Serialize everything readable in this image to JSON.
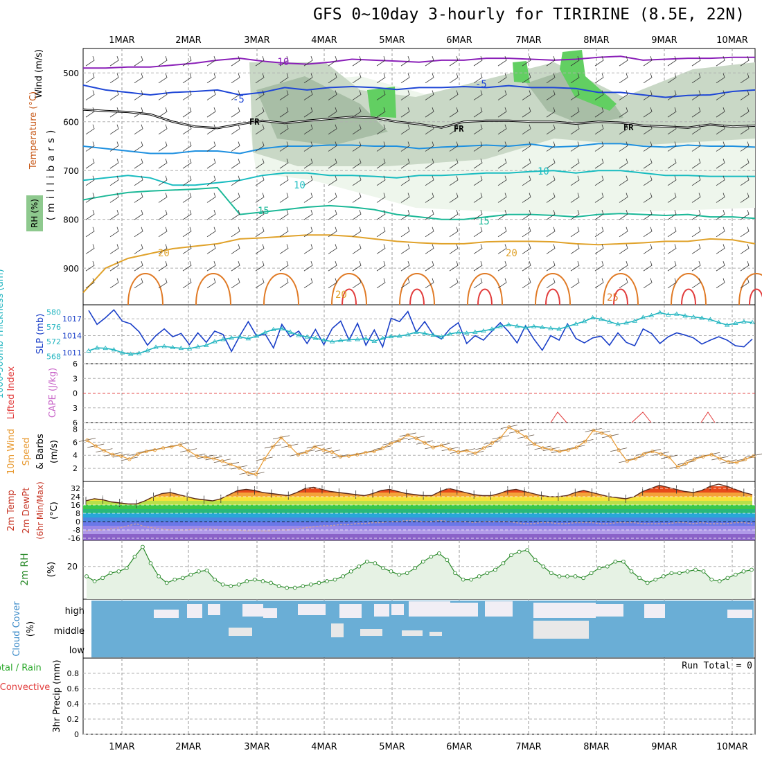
{
  "title": "GFS 0~10day 3-hourly for TIRIRINE (8.5E, 22N)",
  "date_labels": [
    "1MAR",
    "2MAR",
    "3MAR",
    "4MAR",
    "5MAR",
    "6MAR",
    "7MAR",
    "8MAR",
    "9MAR",
    "10MAR"
  ],
  "run_total": "Run Total = 0",
  "panel_labels": {
    "upper": {
      "wind": "Wind (m/s)",
      "temperature": "Temperature (°C)",
      "pressure": "(millibars)",
      "rh": "RH (%)"
    },
    "slp": {
      "thickness": "1000-500mb Thickness (dm)",
      "slp": "SLP (mb)"
    },
    "li": {
      "li": "Lifted Index",
      "cape": "CAPE (J/kg)"
    },
    "wind10": {
      "line1": "10m Wind",
      "line2": "Speed",
      "line3": "& Barbs",
      "units": "(m/s)"
    },
    "temp2m": {
      "line1": "2m Temp",
      "line2": "2m DewPt",
      "line3": "(6hr Min/Max)",
      "units": "(°C)"
    },
    "rh2m": {
      "label": "2m RH",
      "units": "(%)"
    },
    "cloud": {
      "label": "Cloud Cover",
      "units": "(%)",
      "high": "high",
      "middle": "middle",
      "low": "low"
    },
    "precip": {
      "total": "Total / Rain",
      "conv": "Convective",
      "label": "3hr Precip (mm)"
    }
  },
  "colors": {
    "slp": "#1a3fc8",
    "thickness": "#22b5c0",
    "wind10": "#e89a32",
    "rh2m": "#2a8a2a",
    "cloud": "#6aaed6",
    "cloud_clear": "#f1eef5",
    "li": "#e23c3c",
    "fr": "#000000"
  },
  "chart_data": [
    {
      "type": "line",
      "name": "upper_air_cross_section",
      "ylabel": "(millibars)",
      "y_ticks": [
        500,
        600,
        700,
        800,
        900
      ],
      "ylim": [
        975,
        450
      ],
      "contours": [
        {
          "label": "-10",
          "color": "#8a1fb8",
          "p": [
            490,
            490,
            488,
            488,
            484,
            480,
            474,
            470,
            476,
            480,
            482,
            478,
            472,
            474,
            476,
            478,
            474,
            474,
            470,
            470,
            472,
            474,
            472,
            468,
            466,
            474,
            472,
            470,
            470,
            468,
            468
          ]
        },
        {
          "label": "-5",
          "color": "#1e46d6",
          "p": [
            525,
            535,
            540,
            545,
            540,
            538,
            535,
            545,
            540,
            530,
            535,
            530,
            528,
            530,
            534,
            530,
            530,
            528,
            530,
            526,
            530,
            530,
            532,
            540,
            540,
            545,
            550,
            546,
            545,
            538,
            535
          ]
        },
        {
          "label": "FR",
          "color": "#000000",
          "p": [
            575,
            578,
            580,
            585,
            600,
            610,
            613,
            605,
            598,
            603,
            598,
            594,
            590,
            592,
            600,
            605,
            612,
            600,
            598,
            598,
            600,
            600,
            604,
            600,
            602,
            608,
            610,
            612,
            606,
            610,
            608
          ]
        },
        {
          "label": "-5",
          "color": "#1e90e0",
          "p": [
            650,
            655,
            660,
            665,
            665,
            660,
            660,
            665,
            655,
            650,
            650,
            648,
            648,
            650,
            650,
            655,
            652,
            650,
            648,
            650,
            646,
            652,
            650,
            645,
            645,
            650,
            652,
            648,
            650,
            650,
            652
          ]
        },
        {
          "label": "10",
          "color": "#18bcc0",
          "p": [
            720,
            715,
            710,
            715,
            730,
            730,
            725,
            720,
            710,
            705,
            705,
            710,
            710,
            712,
            715,
            710,
            710,
            708,
            705,
            705,
            702,
            700,
            705,
            700,
            700,
            705,
            710,
            710,
            712,
            712,
            712
          ]
        },
        {
          "label": "15",
          "color": "#1bb897",
          "p": [
            760,
            752,
            745,
            742,
            740,
            738,
            735,
            790,
            785,
            780,
            775,
            772,
            775,
            780,
            790,
            795,
            800,
            800,
            795,
            790,
            790,
            792,
            795,
            790,
            788,
            790,
            792,
            790,
            795,
            795,
            798
          ]
        },
        {
          "label": "20",
          "color": "#e0a22a",
          "p": [
            950,
            900,
            880,
            870,
            860,
            855,
            850,
            840,
            838,
            835,
            832,
            832,
            835,
            840,
            845,
            848,
            850,
            850,
            846,
            845,
            845,
            846,
            850,
            852,
            850,
            848,
            845,
            845,
            840,
            842,
            850
          ]
        }
      ],
      "fr_labels": [
        "FR",
        "FR",
        "FR"
      ],
      "temp_labels": [
        "-10",
        "-5",
        "10",
        "15",
        "-5",
        "20",
        "10",
        "15",
        "20",
        "20",
        "25"
      ]
    },
    {
      "type": "line",
      "name": "slp_thickness",
      "slp_ticks": [
        1011,
        1014,
        1017
      ],
      "thickness_ticks": [
        568,
        572,
        576,
        580
      ],
      "series": [
        {
          "name": "SLP (mb)",
          "color": "#1a3fc8",
          "values": [
            1018.5,
            1016,
            1017.2,
            1018.6,
            1016.6,
            1016.1,
            1014.7,
            1012.3,
            1014,
            1015.2,
            1013.8,
            1014.4,
            1012.4,
            1014.5,
            1012.8,
            1014.8,
            1014.2,
            1011.2,
            1014,
            1016.5,
            1013.9,
            1014.3,
            1011.8,
            1016,
            1013.8,
            1014.8,
            1012.6,
            1015.1,
            1012.4,
            1015.3,
            1016.6,
            1013.2,
            1016.2,
            1012.3,
            1015,
            1012,
            1017.1,
            1016.5,
            1018.3,
            1014.6,
            1016.5,
            1014.2,
            1013.4,
            1015.2,
            1016.3,
            1012.6,
            1014,
            1013.2,
            1014.8,
            1016.3,
            1014.7,
            1012.7,
            1015.8,
            1013.4,
            1011.4,
            1014,
            1013.2,
            1016.1,
            1013.5,
            1012.7,
            1013.6,
            1013.9,
            1012.3,
            1014.5,
            1012.8,
            1012.2,
            1015.2,
            1014.4,
            1012.6,
            1013.8,
            1014.5,
            1014.1,
            1013.6,
            1012.5,
            1013.2,
            1013.8,
            1013.2,
            1012.2,
            1012,
            1013.4
          ]
        },
        {
          "name": "1000-500mb Thickness (dm)",
          "color": "#22b5c0",
          "values": [
            569.5,
            570.3,
            570.2,
            569.8,
            569,
            568.6,
            568.8,
            569.6,
            570.5,
            570.7,
            570.4,
            570.2,
            570.1,
            570.6,
            571,
            572,
            572.6,
            573,
            573.3,
            572.8,
            573.5,
            574.5,
            575.3,
            575.5,
            574.6,
            573.7,
            573.3,
            572.9,
            572.4,
            572,
            572.3,
            572.5,
            572.6,
            572.8,
            572.1,
            572.9,
            573.4,
            573.5,
            573.9,
            574.6,
            574.2,
            573.8,
            573.3,
            574.1,
            574.5,
            574.3,
            574.6,
            574.9,
            575.4,
            576.1,
            576.6,
            576.2,
            575.8,
            576.1,
            575.9,
            575.6,
            575.4,
            576.1,
            576.8,
            577.5,
            578.5,
            578.1,
            577.4,
            576.7,
            577.1,
            577.6,
            578.6,
            579.1,
            579.9,
            579.3,
            579.5,
            579,
            578.7,
            578.4,
            578,
            577.2,
            576.5,
            577,
            577.4,
            577.2
          ]
        }
      ]
    },
    {
      "type": "line",
      "name": "lifted_index_cape",
      "li_ticks": [
        -6,
        -3,
        0,
        3,
        6
      ],
      "cape_ticks": [],
      "series": [
        {
          "name": "Lifted Index",
          "color": "#e23c3c",
          "values": []
        }
      ]
    },
    {
      "type": "line",
      "name": "wind10m",
      "ylim": [
        0,
        9
      ],
      "y_ticks": [
        2,
        4,
        6,
        8
      ],
      "series": [
        {
          "name": "Speed",
          "color": "#e89a32",
          "values": [
            6.3,
            5.4,
            4.7,
            4.1,
            3.9,
            3.4,
            4.2,
            4.6,
            4.8,
            5.1,
            5.3,
            5.6,
            4.7,
            3.9,
            3.7,
            3.5,
            3.1,
            2.6,
            2.1,
            1.3,
            1.1,
            3.4,
            5.3,
            6.7,
            5.4,
            4.1,
            4.5,
            5.3,
            4.8,
            4.5,
            3.8,
            3.9,
            4.1,
            4.4,
            4.6,
            5.1,
            5.8,
            6.3,
            7.1,
            6.6,
            5.9,
            5.2,
            5.5,
            4.9,
            4.5,
            4.7,
            4.3,
            5.1,
            5.9,
            6.7,
            8.3,
            7.6,
            6.8,
            5.7,
            5.1,
            4.9,
            4.6,
            4.8,
            5.2,
            6.1,
            7.8,
            7.4,
            6.9,
            4.8,
            3.1,
            3.5,
            4.2,
            4.6,
            4.2,
            3.7,
            2.2,
            2.8,
            3.4,
            3.8,
            4.1,
            3.5,
            3,
            2.9,
            3.4,
            3.9
          ]
        }
      ]
    },
    {
      "type": "area",
      "name": "temp2m",
      "y_ticks": [
        32,
        24,
        16,
        8,
        0,
        -8,
        -16
      ],
      "series": [
        {
          "name": "2m Temp",
          "values": [
            20,
            22,
            21,
            19,
            18,
            17,
            17,
            20,
            24,
            27,
            28,
            26,
            24,
            22,
            21,
            20,
            22,
            26,
            30,
            31,
            30,
            28,
            27,
            26,
            25,
            28,
            32,
            33,
            31,
            29,
            28,
            27,
            26,
            25,
            27,
            30,
            31,
            29,
            27,
            26,
            25,
            25,
            29,
            32,
            30,
            28,
            26,
            25,
            25,
            27,
            30,
            31,
            29,
            27,
            25,
            24,
            24,
            25,
            28,
            30,
            28,
            26,
            24,
            23,
            22,
            24,
            29,
            32,
            35,
            33,
            31,
            29,
            28,
            30,
            34,
            36,
            34,
            31,
            28,
            26
          ]
        },
        {
          "name": "2m DewPt",
          "values": [
            -9,
            -8,
            -8,
            -7,
            -6,
            -4,
            -2,
            -5,
            -6,
            -7,
            -8,
            -8,
            -8,
            -7,
            -7,
            -7,
            -8,
            -8,
            -8,
            -9,
            -9,
            -9,
            -9,
            -8,
            -8,
            -7,
            -6,
            -5,
            -4,
            -4,
            -3,
            -3,
            -2,
            -2,
            -1,
            -1,
            0,
            0,
            1,
            1,
            0,
            0,
            1,
            0,
            0,
            0,
            -1,
            0,
            0,
            0,
            0,
            -1,
            -2,
            -2,
            -1,
            -1,
            -2,
            -2,
            -1,
            -1,
            -1,
            -2,
            -2,
            -1,
            -1,
            -1,
            -2,
            -2,
            -2,
            -2,
            -1,
            -1,
            -2,
            -1,
            -2,
            -2,
            -2,
            -1,
            -1,
            -2
          ]
        }
      ]
    },
    {
      "type": "area",
      "name": "rh2m",
      "y_ticks": [
        20
      ],
      "series": [
        {
          "name": "2m RH",
          "color": "#2a8a2a",
          "values": [
            17,
            15.5,
            16.5,
            18,
            18.5,
            19.5,
            23,
            26,
            21,
            17,
            15,
            16,
            16.5,
            17.5,
            18.5,
            18.8,
            16,
            14.5,
            14,
            14.5,
            15.5,
            16,
            15.5,
            15,
            14,
            13.5,
            13.5,
            14,
            14.5,
            15,
            15.5,
            16,
            17,
            18.5,
            20,
            21.5,
            21,
            19.5,
            18.5,
            17.5,
            18,
            19.5,
            21.5,
            23,
            24,
            22,
            18,
            16,
            16,
            17,
            18,
            19,
            21,
            23.5,
            24.5,
            25,
            22,
            20,
            18,
            17,
            17,
            17,
            16.5,
            18,
            19.5,
            20,
            21.5,
            21.5,
            18.5,
            16.5,
            15,
            16,
            17,
            18,
            18,
            18.5,
            19,
            18.5,
            16,
            15.5,
            16.5,
            17.5,
            18.5,
            19
          ]
        }
      ]
    },
    {
      "type": "heatmap",
      "name": "cloud_cover",
      "levels": [
        "high",
        "middle",
        "low"
      ]
    },
    {
      "type": "bar",
      "name": "precip_3hr",
      "ylim": [
        0,
        1
      ],
      "y_ticks": [
        0,
        0.2,
        0.4,
        0.6,
        0.8
      ],
      "values": []
    }
  ]
}
